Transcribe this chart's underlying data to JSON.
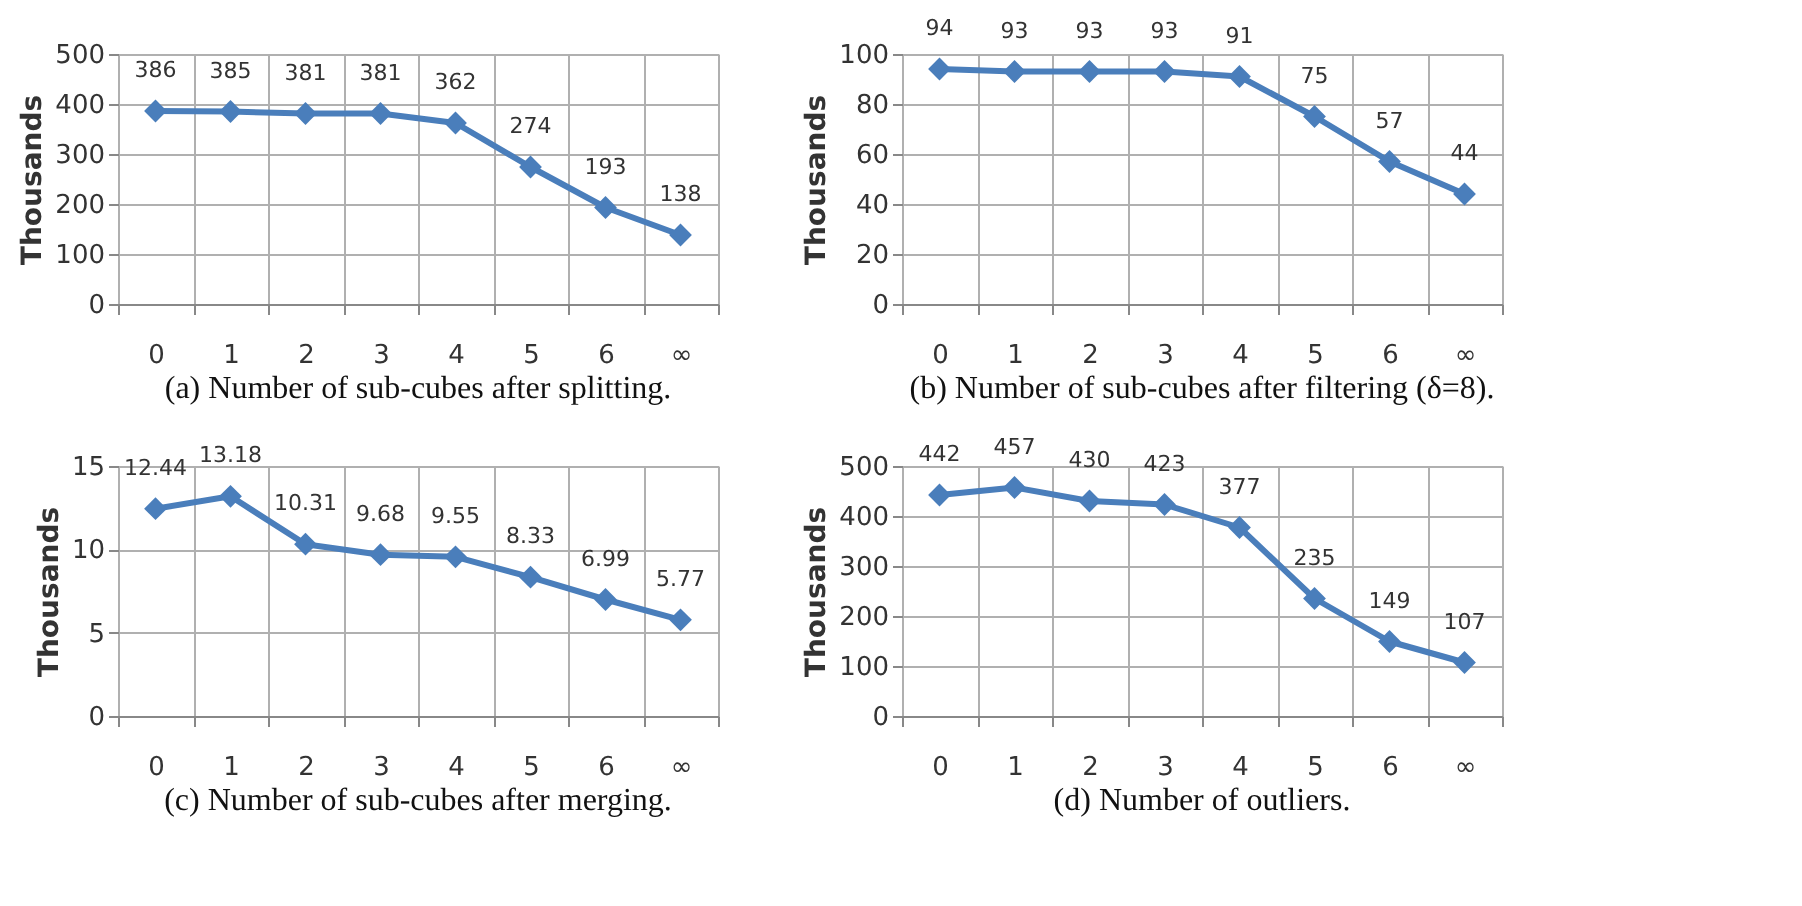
{
  "chart_data": [
    {
      "type": "line",
      "title": "(a) Number of sub-cubes after splitting.",
      "ylabel": "Thousands",
      "categories": [
        "0",
        "1",
        "2",
        "3",
        "4",
        "5",
        "6",
        "∞"
      ],
      "series": [
        {
          "color": "#4a7ebb",
          "values": [
            386,
            385,
            381,
            381,
            362,
            274,
            193,
            138
          ]
        }
      ],
      "ylim": [
        0,
        500
      ],
      "yticks": [
        0,
        100,
        200,
        300,
        400,
        500
      ],
      "grid": true,
      "marker": "diamond",
      "line_style": "solid",
      "data_labels": true
    },
    {
      "type": "line",
      "title": "(b) Number of sub-cubes after filtering (δ=8).",
      "ylabel": "Thousands",
      "categories": [
        "0",
        "1",
        "2",
        "3",
        "4",
        "5",
        "6",
        "∞"
      ],
      "series": [
        {
          "color": "#4a7ebb",
          "values": [
            94,
            93,
            93,
            93,
            91,
            75,
            57,
            44
          ]
        }
      ],
      "ylim": [
        0,
        100
      ],
      "yticks": [
        0,
        20,
        40,
        60,
        80,
        100
      ],
      "grid": true,
      "marker": "diamond",
      "line_style": "solid",
      "data_labels": true
    },
    {
      "type": "line",
      "title": "(c) Number of sub-cubes after merging.",
      "ylabel": "Thousands",
      "categories": [
        "0",
        "1",
        "2",
        "3",
        "4",
        "5",
        "6",
        "∞"
      ],
      "series": [
        {
          "color": "#4a7ebb",
          "values": [
            12.44,
            13.18,
            10.31,
            9.68,
            9.55,
            8.33,
            6.99,
            5.77
          ]
        }
      ],
      "ylim": [
        0,
        15
      ],
      "yticks": [
        0,
        5,
        10,
        15
      ],
      "grid": true,
      "marker": "diamond",
      "line_style": "solid",
      "data_labels": true
    },
    {
      "type": "line",
      "title": "(d) Number of outliers.",
      "ylabel": "Thousands",
      "categories": [
        "0",
        "1",
        "2",
        "3",
        "4",
        "5",
        "6",
        "∞"
      ],
      "series": [
        {
          "color": "#4a7ebb",
          "values": [
            442,
            457,
            430,
            423,
            377,
            235,
            149,
            107
          ]
        }
      ],
      "ylim": [
        0,
        500
      ],
      "yticks": [
        0,
        100,
        200,
        300,
        400,
        500
      ],
      "grid": true,
      "marker": "diamond",
      "line_style": "solid",
      "data_labels": true
    }
  ]
}
